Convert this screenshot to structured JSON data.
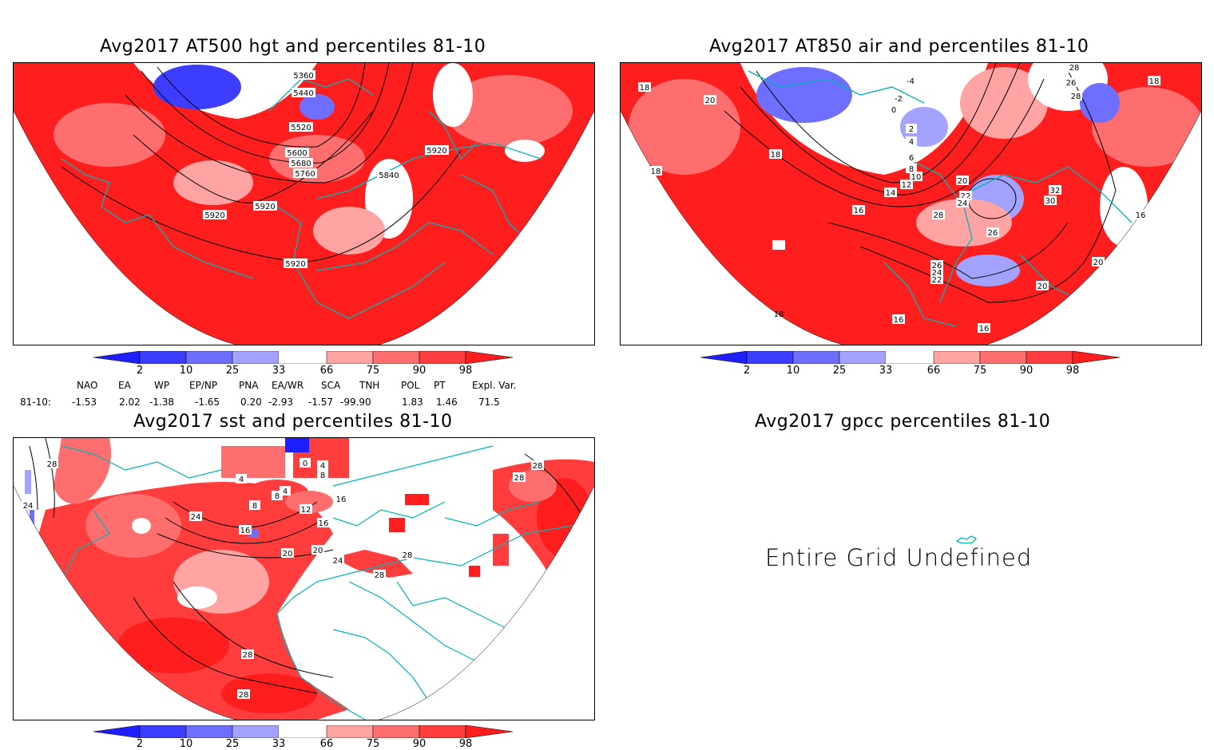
{
  "panels": [
    {
      "title": "Avg2017 AT500 hgt and percentiles 81-10",
      "contour_labels": [
        "5360",
        "5440",
        "5520",
        "5600",
        "5680",
        "5760",
        "5840",
        "5920",
        "5920",
        "5920",
        "5920",
        "5920"
      ]
    },
    {
      "title": "Avg2017 AT850 air and percentiles 81-10",
      "contour_labels": [
        "-4",
        "-2",
        "0",
        "2",
        "4",
        "6",
        "8",
        "10",
        "12",
        "14",
        "16",
        "16",
        "16",
        "16",
        "16",
        "18",
        "18",
        "18",
        "18",
        "18",
        "20",
        "20",
        "20",
        "20",
        "22",
        "22",
        "24",
        "24",
        "26",
        "26",
        "26",
        "28",
        "28",
        "28",
        "30",
        "32"
      ]
    },
    {
      "title": "Avg2017 sst and percentiles 81-10",
      "contour_labels": [
        "28",
        "24",
        "24",
        "16",
        "20",
        "20",
        "24",
        "28",
        "28",
        "28",
        "28",
        "28",
        "28",
        "4",
        "8",
        "8",
        "12",
        "16",
        "16",
        "4",
        "0",
        "8",
        "4"
      ]
    },
    {
      "title": "Avg2017 gpcc percentiles 81-10",
      "message": "Entire Grid Undefined"
    }
  ],
  "colorbar": {
    "labels": [
      "2",
      "10",
      "25",
      "33",
      "66",
      "75",
      "90",
      "98"
    ],
    "colors": [
      "#1e1eff",
      "#3d3dff",
      "#6e6eff",
      "#a3a3ff",
      "#ffffff",
      "#ffa3a3",
      "#ff6e6e",
      "#ff3d3d",
      "#ff1e1e"
    ]
  },
  "indices": {
    "headers": [
      "NAO",
      "EA",
      "WP",
      "EP/NP",
      "PNA",
      "EA/WR",
      "SCA",
      "TNH",
      "POL",
      "PT",
      "Expl. Var."
    ],
    "row_label": "81-10:",
    "values": [
      "-1.53",
      "2.02",
      "-1.38",
      "-1.65",
      "0.20",
      "-2.93",
      "-1.57",
      "-99.90",
      "1.83",
      "1.46",
      "71.5"
    ]
  },
  "colors": {
    "land_outline": "#00b4b4",
    "fill_red": "#ff0000",
    "fill_blue": "#3c3cff",
    "contour": "#000000"
  }
}
